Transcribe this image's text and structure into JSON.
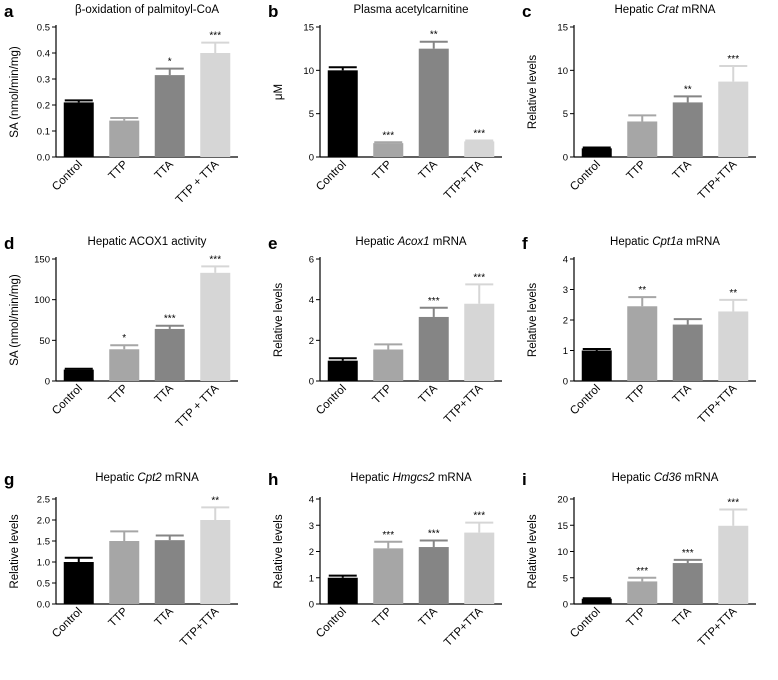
{
  "colors": {
    "control": "#000000",
    "ttp": "#a6a6a6",
    "tta": "#858585",
    "ttp_tta": "#d6d6d6"
  },
  "chart_data": [
    {
      "panel": "a",
      "type": "bar",
      "title": "β-oxidation of palmitoyl-CoA",
      "title_italic": "",
      "title_suffix": "",
      "ylabel": "SA (nmol/min/mg)",
      "ylim": [
        0,
        0.5
      ],
      "yticks": [
        "0.0",
        "0.1",
        "0.2",
        "0.3",
        "0.4",
        "0.5"
      ],
      "categories": [
        "Control",
        "TTP",
        "TTA",
        "TTP + TTA"
      ],
      "values": [
        0.21,
        0.14,
        0.315,
        0.4
      ],
      "errors": [
        0.008,
        0.01,
        0.025,
        0.04
      ],
      "significance": [
        "",
        "",
        "*",
        "***"
      ]
    },
    {
      "panel": "b",
      "type": "bar",
      "title": "Plasma acetylcarnitine",
      "title_italic": "",
      "title_suffix": "",
      "ylabel": "μM",
      "ylim": [
        0,
        15
      ],
      "yticks": [
        "0",
        "5",
        "10",
        "15"
      ],
      "categories": [
        "Control",
        "TTP",
        "TTA",
        "TTP+TTA"
      ],
      "values": [
        10.0,
        1.6,
        12.5,
        1.8
      ],
      "errors": [
        0.35,
        0.1,
        0.8,
        0.1
      ],
      "significance": [
        "",
        "***",
        "**",
        "***"
      ]
    },
    {
      "panel": "c",
      "type": "bar",
      "title": "Hepatic ",
      "title_italic": "Crat",
      "title_suffix": " mRNA",
      "ylabel": "Relative levels",
      "ylim": [
        0,
        15
      ],
      "yticks": [
        "0",
        "5",
        "10",
        "15"
      ],
      "categories": [
        "Control",
        "TTP",
        "TTA",
        "TTP+TTA"
      ],
      "values": [
        1.0,
        4.1,
        6.3,
        8.7
      ],
      "errors": [
        0.1,
        0.7,
        0.7,
        1.8
      ],
      "significance": [
        "",
        "",
        "**",
        "***"
      ]
    },
    {
      "panel": "d",
      "type": "bar",
      "title": "Hepatic ACOX1 activity",
      "title_italic": "",
      "title_suffix": "",
      "ylabel": "SA (nmol/min/mg)",
      "ylim": [
        0,
        150
      ],
      "yticks": [
        "0",
        "50",
        "100",
        "150"
      ],
      "categories": [
        "Control",
        "TTP",
        "TTA",
        "TTP + TTA"
      ],
      "values": [
        14,
        39,
        64,
        133
      ],
      "errors": [
        1,
        5,
        4,
        8
      ],
      "significance": [
        "",
        "*",
        "***",
        "***"
      ]
    },
    {
      "panel": "e",
      "type": "bar",
      "title": "Hepatic ",
      "title_italic": "Acox1",
      "title_suffix": " mRNA",
      "ylabel": "Relative levels",
      "ylim": [
        0,
        6
      ],
      "yticks": [
        "0",
        "2",
        "4",
        "6"
      ],
      "categories": [
        "Control",
        "TTP",
        "TTA",
        "TTP+TTA"
      ],
      "values": [
        1.0,
        1.55,
        3.15,
        3.8
      ],
      "errors": [
        0.12,
        0.25,
        0.45,
        0.95
      ],
      "significance": [
        "",
        "",
        "***",
        "***"
      ]
    },
    {
      "panel": "f",
      "type": "bar",
      "title": "Hepatic ",
      "title_italic": "Cpt1a",
      "title_suffix": " mRNA",
      "ylabel": "Relative levels",
      "ylim": [
        0,
        4
      ],
      "yticks": [
        "0",
        "1",
        "2",
        "3",
        "4"
      ],
      "categories": [
        "Control",
        "TTP",
        "TTA",
        "TTP+TTA"
      ],
      "values": [
        1.0,
        2.45,
        1.85,
        2.28
      ],
      "errors": [
        0.05,
        0.3,
        0.18,
        0.38
      ],
      "significance": [
        "",
        "**",
        "",
        "**"
      ]
    },
    {
      "panel": "g",
      "type": "bar",
      "title": "Hepatic ",
      "title_italic": "Cpt2",
      "title_suffix": " mRNA",
      "ylabel": "Relative levels",
      "ylim": [
        0,
        2.5
      ],
      "yticks": [
        "0.0",
        "0.5",
        "1.0",
        "1.5",
        "2.0",
        "2.5"
      ],
      "categories": [
        "Control",
        "TTP",
        "TTA",
        "TTP+TTA"
      ],
      "values": [
        1.0,
        1.5,
        1.52,
        2.0
      ],
      "errors": [
        0.1,
        0.23,
        0.11,
        0.3
      ],
      "significance": [
        "",
        "",
        "",
        "**"
      ]
    },
    {
      "panel": "h",
      "type": "bar",
      "title": "Hepatic ",
      "title_italic": "Hmgcs2",
      "title_suffix": " mRNA",
      "ylabel": "Relative levels",
      "ylim": [
        0,
        4
      ],
      "yticks": [
        "0",
        "1",
        "2",
        "3",
        "4"
      ],
      "categories": [
        "Control",
        "TTP",
        "TTA",
        "TTP+TTA"
      ],
      "values": [
        1.0,
        2.12,
        2.17,
        2.72
      ],
      "errors": [
        0.08,
        0.25,
        0.25,
        0.38
      ],
      "significance": [
        "",
        "***",
        "***",
        "***"
      ]
    },
    {
      "panel": "i",
      "type": "bar",
      "title": "Hepatic ",
      "title_italic": "Cd36",
      "title_suffix": " mRNA",
      "ylabel": "Relative levels",
      "ylim": [
        0,
        20
      ],
      "yticks": [
        "0",
        "5",
        "10",
        "15",
        "20"
      ],
      "categories": [
        "Control",
        "TTP",
        "TTA",
        "TTP+TTA"
      ],
      "values": [
        1.0,
        4.3,
        7.8,
        14.9
      ],
      "errors": [
        0.1,
        0.7,
        0.6,
        3.1
      ],
      "significance": [
        "",
        "***",
        "***",
        "***"
      ]
    }
  ]
}
